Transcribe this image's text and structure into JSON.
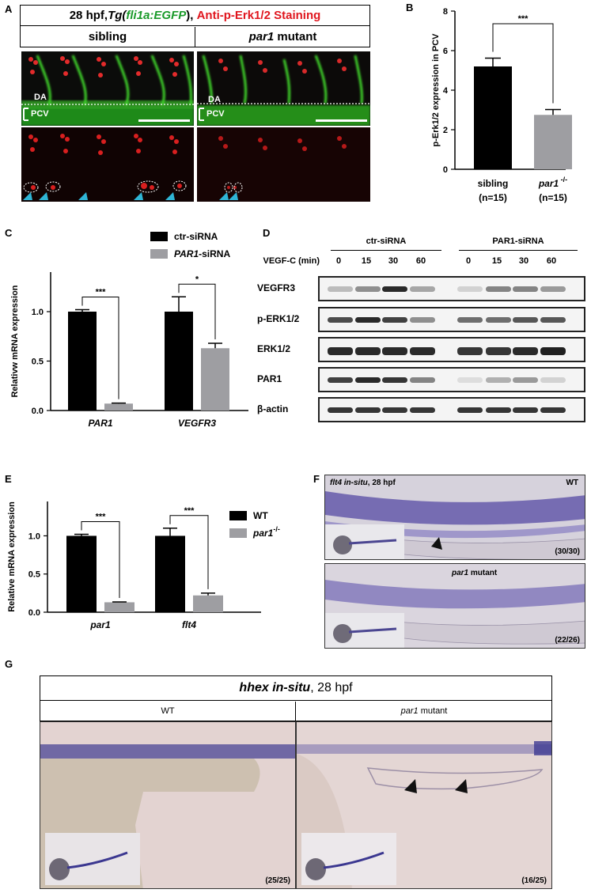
{
  "panels": {
    "A": {
      "label": "A",
      "title_prefix": "28 hpf, ",
      "title_tg": "Tg(",
      "title_gene": "fli1a:EGFP",
      "title_tg_end": "), ",
      "title_stain": "Anti-p-Erk1/2 Staining",
      "col_sibling": "sibling",
      "col_mutant_gene": "par1",
      "col_mutant_word": " mutant",
      "label_da": "DA",
      "label_pcv": "PCV"
    },
    "B": {
      "label": "B",
      "significance": "***"
    },
    "C": {
      "label": "C",
      "significance": [
        "***",
        "*"
      ]
    },
    "D": {
      "label": "D",
      "group1": "ctr-siRNA",
      "group2": "PAR1-siRNA",
      "time_label": "VEGF-C (min)",
      "times": [
        "0",
        "15",
        "30",
        "60",
        "0",
        "15",
        "30",
        "60"
      ],
      "rows": [
        "VEGFR3",
        "p-ERK1/2",
        "ERK1/2",
        "PAR1",
        "β-actin"
      ]
    },
    "E": {
      "label": "E",
      "significance": [
        "***",
        "***"
      ]
    },
    "F": {
      "label": "F",
      "top_gene": "flt4 in-situ",
      "top_stage": ", 28 hpf",
      "top_genotype": "WT",
      "top_count": "(30/30)",
      "bottom_gene": "par1",
      "bottom_word": " mutant",
      "bottom_count": "(22/26)"
    },
    "G": {
      "label": "G",
      "title_gene": "hhex in-situ",
      "title_stage": ", 28 hpf",
      "col_wt": "WT",
      "col_mutant_gene": "par1",
      "col_mutant_word": " mutant",
      "count_wt": "(25/25)",
      "count_mutant": "(16/25)"
    }
  },
  "chart_data": [
    {
      "panel": "B",
      "type": "bar",
      "categories": [
        "sibling\n(n=15)",
        "par1 -/-\n(n=15)"
      ],
      "category_labels": [
        [
          "sibling",
          "(n=15)"
        ],
        [
          "par1",
          "-/-",
          "(n=15)"
        ]
      ],
      "values": [
        5.2,
        2.75
      ],
      "errors": [
        0.42,
        0.27
      ],
      "colors": [
        "#000000",
        "#9e9ea2"
      ],
      "ylabel": "p-Erk1/2 expression in PCV",
      "ylim": [
        0,
        8
      ],
      "yticks": [
        "0",
        "2",
        "4",
        "6",
        "8"
      ]
    },
    {
      "panel": "C",
      "type": "bar",
      "categories": [
        "PAR1",
        "VEGFR3"
      ],
      "series": [
        {
          "name": "ctr-siRNA",
          "values": [
            1.0,
            1.0
          ],
          "errors": [
            0.02,
            0.15
          ],
          "color": "#000000"
        },
        {
          "name": "PAR1-siRNA",
          "values": [
            0.07,
            0.63
          ],
          "errors": [
            0.005,
            0.05
          ],
          "color": "#9e9ea2"
        }
      ],
      "legend": [
        "ctr-siRNA",
        "PAR1",
        "-siRNA"
      ],
      "ylabel": "Relativw mRNA expression",
      "ylim": [
        0,
        1.4
      ],
      "yticks": [
        "0.0",
        "0.5",
        "1.0"
      ]
    },
    {
      "panel": "E",
      "type": "bar",
      "categories": [
        "par1",
        "flt4"
      ],
      "series": [
        {
          "name": "WT",
          "values": [
            1.0,
            1.0
          ],
          "errors": [
            0.02,
            0.1
          ],
          "color": "#000000"
        },
        {
          "name": "par1-/-",
          "values": [
            0.13,
            0.22
          ],
          "errors": [
            0.005,
            0.03
          ],
          "color": "#9e9ea2"
        }
      ],
      "legend": [
        "WT",
        "par1",
        "-/-"
      ],
      "ylabel": "Relative mRNA expression",
      "ylim": [
        0,
        1.45
      ],
      "yticks": [
        "0.0",
        "0.5",
        "1.0"
      ]
    }
  ]
}
